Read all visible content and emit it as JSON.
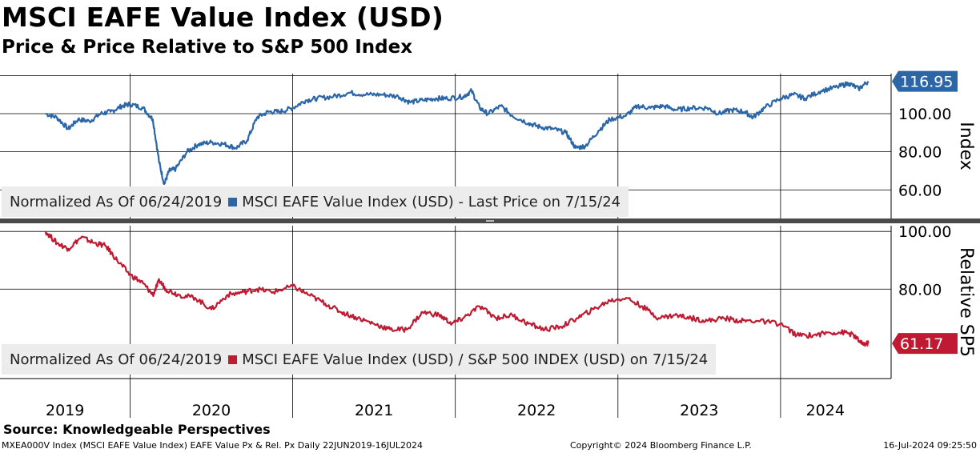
{
  "header": {
    "title": "MSCI EAFE Value Index (USD)",
    "subtitle": "Price & Price Relative to S&P 500 Index"
  },
  "legends": {
    "top_prefix": "Normalized As Of 06/24/2019",
    "top_series": "MSCI EAFE Value Index (USD) - Last Price on 7/15/24",
    "bottom_prefix": "Normalized As Of 06/24/2019",
    "bottom_series": "MSCI EAFE Value Index (USD) / S&P 500 INDEX (USD) on 7/15/24"
  },
  "footer": {
    "source": "Source: Knowledgeable Perspectives",
    "ticker_info": "MXEA000V Index (MSCI EAFE Value Index) EAFE Value Px & Rel. Px  Daily 22JUN2019-16JUL2024",
    "copyright": "Copyright© 2024 Bloomberg Finance L.P.",
    "timestamp": "16-Jul-2024 09:25:50"
  },
  "colors": {
    "price": "#2a66a8",
    "relative": "#c01a32",
    "last_price_tag": "#2a66a8",
    "last_rel_tag": "#c01a32"
  },
  "chart_data": [
    {
      "type": "line",
      "name": "MSCI EAFE Value Index (USD) - Last Price",
      "ylabel": "Index",
      "ylim": [
        45,
        121
      ],
      "yticks": [
        "60.00",
        "80.00",
        "100.00"
      ],
      "last_value": "116.95",
      "x_years": [
        "2019",
        "2020",
        "2021",
        "2022",
        "2023",
        "2024"
      ],
      "x": [
        2019.48,
        2019.55,
        2019.62,
        2019.68,
        2019.75,
        2019.82,
        2019.88,
        2019.95,
        2020.0,
        2020.08,
        2020.14,
        2020.18,
        2020.21,
        2020.24,
        2020.28,
        2020.35,
        2020.42,
        2020.5,
        2020.58,
        2020.65,
        2020.72,
        2020.78,
        2020.85,
        2020.92,
        2021.0,
        2021.08,
        2021.15,
        2021.25,
        2021.35,
        2021.45,
        2021.55,
        2021.65,
        2021.72,
        2021.8,
        2021.88,
        2021.95,
        2022.05,
        2022.1,
        2022.15,
        2022.2,
        2022.28,
        2022.35,
        2022.45,
        2022.52,
        2022.6,
        2022.68,
        2022.74,
        2022.8,
        2022.88,
        2022.95,
        2023.05,
        2023.12,
        2023.2,
        2023.28,
        2023.36,
        2023.45,
        2023.55,
        2023.62,
        2023.7,
        2023.78,
        2023.83,
        2023.9,
        2024.0,
        2024.08,
        2024.15,
        2024.25,
        2024.35,
        2024.42,
        2024.48,
        2024.54
      ],
      "y": [
        100,
        98,
        92,
        97,
        96,
        100,
        101,
        104,
        105,
        103,
        97,
        74,
        63,
        70,
        71,
        80,
        84,
        85,
        84,
        82,
        86,
        98,
        101,
        101,
        103,
        107,
        108,
        109,
        111,
        110,
        110,
        109,
        106,
        107,
        108,
        108,
        109,
        112,
        103,
        100,
        104,
        99,
        95,
        93,
        92,
        90,
        82,
        83,
        91,
        97,
        99,
        104,
        103,
        104,
        102,
        103,
        103,
        100,
        102,
        101,
        98,
        103,
        108,
        110,
        108,
        112,
        114,
        116,
        113,
        116.95
      ]
    },
    {
      "type": "line",
      "name": "MSCI EAFE Value Index (USD) / S&P 500 INDEX (USD)",
      "ylabel": "Relative SP5",
      "ylim": [
        49,
        102
      ],
      "yticks": [
        "80.00",
        "100.00"
      ],
      "last_value": "61.17",
      "x_years": [
        "2019",
        "2020",
        "2021",
        "2022",
        "2023",
        "2024"
      ],
      "x": [
        2019.48,
        2019.55,
        2019.62,
        2019.7,
        2019.78,
        2019.85,
        2019.92,
        2020.0,
        2020.08,
        2020.14,
        2020.18,
        2020.22,
        2020.3,
        2020.4,
        2020.5,
        2020.6,
        2020.7,
        2020.78,
        2020.88,
        2021.0,
        2021.1,
        2021.2,
        2021.3,
        2021.4,
        2021.5,
        2021.6,
        2021.7,
        2021.8,
        2021.9,
        2021.98,
        2022.05,
        2022.15,
        2022.25,
        2022.35,
        2022.45,
        2022.55,
        2022.65,
        2022.75,
        2022.85,
        2022.95,
        2023.05,
        2023.15,
        2023.25,
        2023.35,
        2023.45,
        2023.55,
        2023.65,
        2023.75,
        2023.85,
        2024.0,
        2024.1,
        2024.2,
        2024.3,
        2024.4,
        2024.45,
        2024.5,
        2024.54
      ],
      "y": [
        100,
        96,
        94,
        98,
        96,
        95,
        90,
        85,
        82,
        78,
        83,
        80,
        78,
        77,
        73,
        78,
        79,
        80,
        79,
        81,
        78,
        75,
        72,
        70,
        68,
        66,
        66,
        72,
        71,
        68,
        70,
        74,
        70,
        71,
        68,
        66,
        67,
        70,
        73,
        76,
        77,
        74,
        70,
        71,
        70,
        69,
        70,
        69,
        69,
        68,
        64,
        64,
        65,
        65,
        64,
        61,
        61.17
      ]
    }
  ]
}
